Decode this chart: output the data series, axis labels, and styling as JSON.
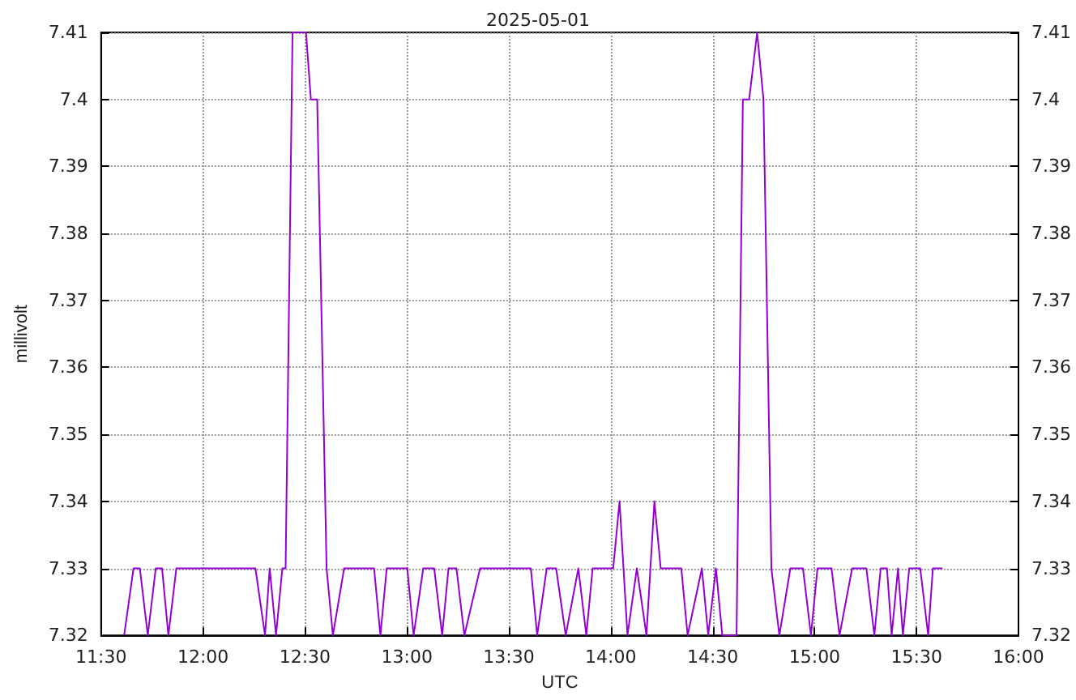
{
  "chart_data": {
    "type": "line",
    "title": "2025-05-01",
    "xlabel": "UTC",
    "ylabel": "millivolt",
    "grid": true,
    "marker": "none",
    "line_style": "solid",
    "xlim": [
      11.5,
      16
    ],
    "xticks": [
      {
        "value": 11.5,
        "label": "11:30"
      },
      {
        "value": 12,
        "label": "12:00"
      },
      {
        "value": 12.5,
        "label": "12:30"
      },
      {
        "value": 13,
        "label": "13:00"
      },
      {
        "value": 13.5,
        "label": "13:30"
      },
      {
        "value": 14,
        "label": "14:00"
      },
      {
        "value": 14.5,
        "label": "14:30"
      },
      {
        "value": 15,
        "label": "15:00"
      },
      {
        "value": 15.5,
        "label": "15:30"
      },
      {
        "value": 16,
        "label": "16:00"
      }
    ],
    "ylim": [
      7.32,
      7.41
    ],
    "yticks": [
      7.32,
      7.33,
      7.34,
      7.35,
      7.36,
      7.37,
      7.38,
      7.39,
      7.4,
      7.41
    ],
    "y2lim": [
      7.32,
      7.41
    ],
    "y2ticks": [
      7.32,
      7.33,
      7.34,
      7.35,
      7.36,
      7.37,
      7.38,
      7.39,
      7.4,
      7.41
    ],
    "series": [
      {
        "color": "#9400d3",
        "x": [
          11.613,
          11.659,
          11.69,
          11.729,
          11.768,
          11.799,
          11.83,
          11.869,
          12.257,
          12.304,
          12.327,
          12.358,
          12.389,
          12.405,
          12.439,
          12.505,
          12.529,
          12.56,
          12.606,
          12.637,
          12.692,
          12.839,
          12.87,
          12.901,
          13.002,
          13.033,
          13.08,
          13.134,
          13.173,
          13.204,
          13.243,
          13.282,
          13.359,
          13.608,
          13.639,
          13.686,
          13.732,
          13.779,
          13.841,
          13.88,
          13.911,
          14.012,
          14.043,
          14.082,
          14.128,
          14.175,
          14.214,
          14.245,
          14.346,
          14.377,
          14.447,
          14.478,
          14.516,
          14.547,
          14.617,
          14.648,
          14.679,
          14.718,
          14.749,
          14.788,
          14.827,
          14.881,
          14.943,
          14.982,
          15.014,
          15.083,
          15.122,
          15.184,
          15.254,
          15.293,
          15.324,
          15.355,
          15.378,
          15.409,
          15.433,
          15.464,
          15.518,
          15.557,
          15.58,
          15.627
        ],
        "values": [
          7.32,
          7.33,
          7.33,
          7.32,
          7.33,
          7.33,
          7.32,
          7.33,
          7.33,
          7.32,
          7.33,
          7.32,
          7.33,
          7.33,
          7.41,
          7.41,
          7.4,
          7.4,
          7.33,
          7.32,
          7.33,
          7.33,
          7.32,
          7.33,
          7.33,
          7.32,
          7.33,
          7.33,
          7.32,
          7.33,
          7.33,
          7.32,
          7.33,
          7.33,
          7.32,
          7.33,
          7.33,
          7.32,
          7.33,
          7.32,
          7.33,
          7.33,
          7.34,
          7.32,
          7.33,
          7.32,
          7.34,
          7.33,
          7.33,
          7.32,
          7.33,
          7.32,
          7.33,
          7.32,
          7.32,
          7.4,
          7.4,
          7.41,
          7.4,
          7.33,
          7.32,
          7.33,
          7.33,
          7.32,
          7.33,
          7.33,
          7.32,
          7.33,
          7.33,
          7.32,
          7.33,
          7.33,
          7.32,
          7.33,
          7.32,
          7.33,
          7.33,
          7.32,
          7.33,
          7.33
        ]
      }
    ]
  }
}
